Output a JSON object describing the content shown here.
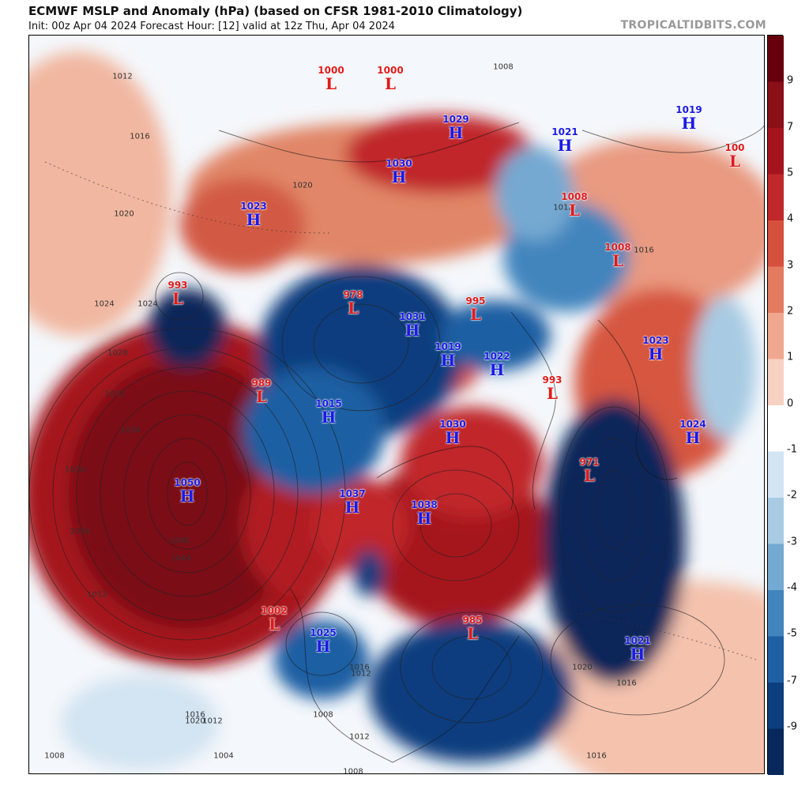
{
  "header": {
    "title": "ECMWF MSLP and Anomaly (hPa) (based on CFSR 1981-2010 Climatology)",
    "subtitle": "Init: 00z Apr 04 2024   Forecast Hour: [12]   valid at 12z Thu, Apr 04 2024",
    "brand": "TROPICALTIDBITS.COM"
  },
  "colorbar": {
    "labels": [
      "9",
      "7",
      "5",
      "4",
      "3",
      "2",
      "1",
      "0",
      "-1",
      "-2",
      "-3",
      "-4",
      "-5",
      "-7",
      "-9"
    ],
    "colors": [
      "#67000d",
      "#8a0f17",
      "#a5141d",
      "#c0282b",
      "#d6503e",
      "#e47b60",
      "#efa88f",
      "#f7d2c3",
      "#ffffff",
      "#d3e4f2",
      "#a8cbe3",
      "#74a9d1",
      "#4285bd",
      "#1f5fa3",
      "#0d3e7e",
      "#08275a"
    ]
  },
  "pressure_systems": [
    {
      "type": "L",
      "value": "1000"
    },
    {
      "type": "L",
      "value": "1000"
    },
    {
      "type": "H",
      "value": "1029"
    },
    {
      "type": "H",
      "value": "1021"
    },
    {
      "type": "H",
      "value": "1019"
    },
    {
      "type": "L",
      "value": "100"
    },
    {
      "type": "H",
      "value": "1030"
    },
    {
      "type": "L",
      "value": "1008"
    },
    {
      "type": "H",
      "value": "1023"
    },
    {
      "type": "L",
      "value": "1008"
    },
    {
      "type": "L",
      "value": "993"
    },
    {
      "type": "L",
      "value": "978"
    },
    {
      "type": "L",
      "value": "995"
    },
    {
      "type": "H",
      "value": "1031"
    },
    {
      "type": "H",
      "value": "1019"
    },
    {
      "type": "H",
      "value": "1022"
    },
    {
      "type": "L",
      "value": "993"
    },
    {
      "type": "H",
      "value": "1023"
    },
    {
      "type": "L",
      "value": "989"
    },
    {
      "type": "H",
      "value": "1015"
    },
    {
      "type": "H",
      "value": "1030"
    },
    {
      "type": "H",
      "value": "1024"
    },
    {
      "type": "L",
      "value": "971"
    },
    {
      "type": "H",
      "value": "1050"
    },
    {
      "type": "H",
      "value": "1037"
    },
    {
      "type": "H",
      "value": "1038"
    },
    {
      "type": "L",
      "value": "1002"
    },
    {
      "type": "H",
      "value": "1025"
    },
    {
      "type": "L",
      "value": "985"
    },
    {
      "type": "H",
      "value": "1021"
    }
  ],
  "isobar_labels": [
    "1012",
    "1016",
    "1020",
    "1024",
    "1028",
    "1032",
    "1036",
    "1040",
    "1044",
    "1020",
    "1016",
    "1012",
    "1008",
    "1004",
    "1012",
    "1016",
    "1020",
    "1008",
    "1012",
    "1016",
    "1024",
    "1020",
    "1016",
    "1012",
    "1008",
    "1016",
    "1020",
    "1008",
    "1012",
    "1016"
  ]
}
